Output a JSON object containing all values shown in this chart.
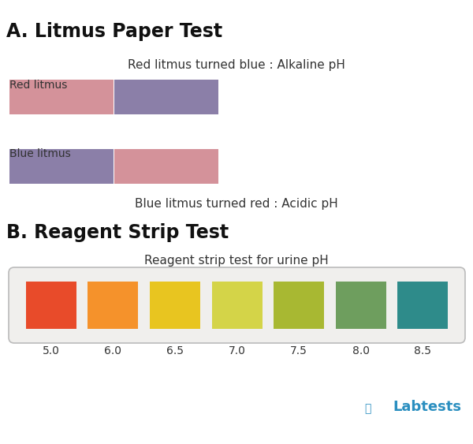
{
  "title_a": "A. Litmus Paper Test",
  "title_b": "B. Reagent Strip Test",
  "red_litmus_label": "Red litmus",
  "blue_litmus_label": "Blue litmus",
  "red_litmus_caption": "Red litmus turned blue : Alkaline pH",
  "blue_litmus_caption": "Blue litmus turned red : Acidic pH",
  "reagent_title": "Reagent strip test for urine pH",
  "red_litmus_colors": [
    "#D4929A",
    "#8B7FA8"
  ],
  "blue_litmus_colors": [
    "#8B7FA8",
    "#D4929A"
  ],
  "reagent_colors": [
    "#E84B2A",
    "#F5922B",
    "#E8C520",
    "#D4D448",
    "#A8B832",
    "#6E9E5E",
    "#2E8B8A"
  ],
  "reagent_labels": [
    "5.0",
    "6.0",
    "6.5",
    "7.0",
    "7.5",
    "8.0",
    "8.5"
  ],
  "background_color": "#FFFFFF",
  "strip_bg": "#F0EFED",
  "strip_border": "#BBBBBB",
  "labtests_color": "#2B8FC0",
  "labtests_text": "Labtests"
}
